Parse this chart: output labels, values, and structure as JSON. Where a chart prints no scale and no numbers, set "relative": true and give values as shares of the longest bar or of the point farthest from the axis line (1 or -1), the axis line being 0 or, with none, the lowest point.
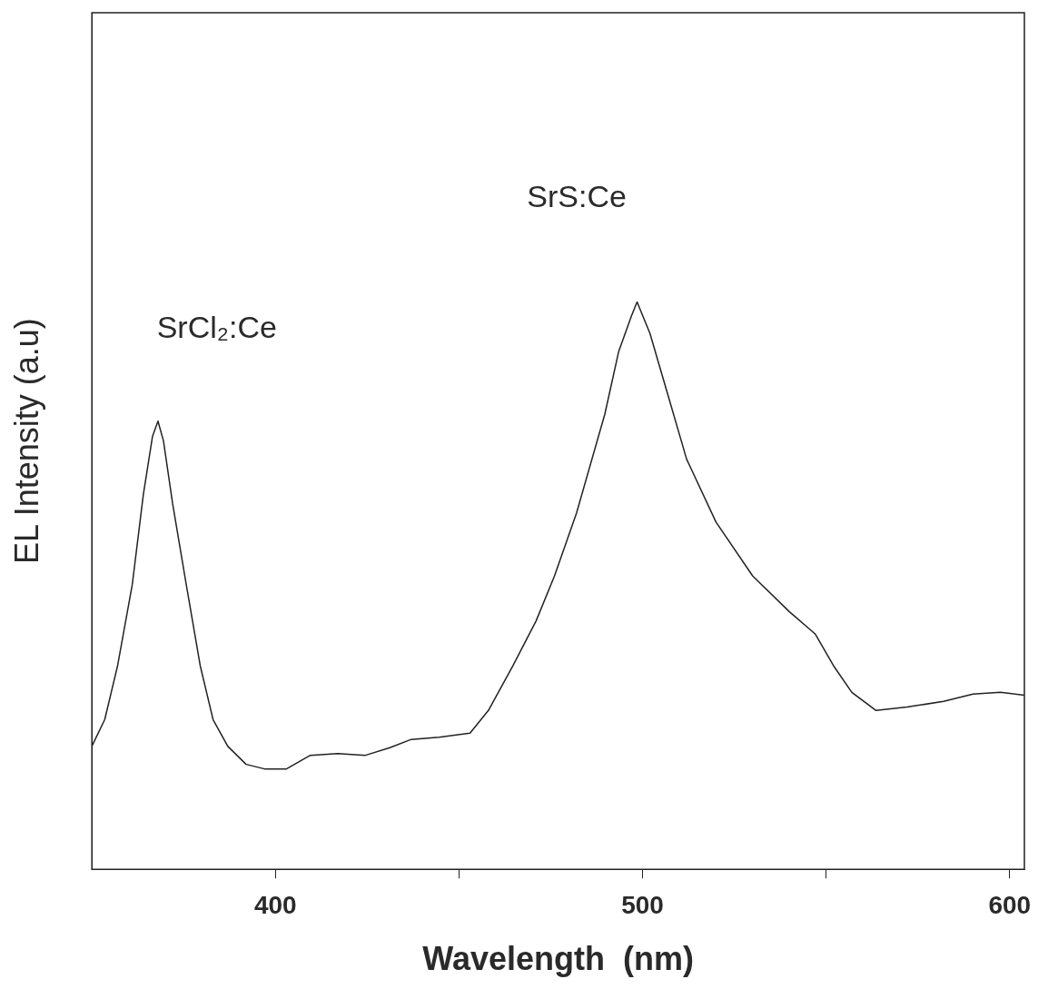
{
  "chart_data": {
    "type": "line",
    "relative": true,
    "xlabel": "Wavelength  (nm)",
    "ylabel": "EL Intensity (a.u)",
    "xlim": [
      350,
      604
    ],
    "xticks": [
      400,
      {
        "value": 450,
        "label": null
      },
      500,
      {
        "value": 550,
        "label": null
      },
      600
    ],
    "marker": "none",
    "line_style": "solid",
    "annotations": [
      "SrCl₂:Ce",
      "SrS:Ce"
    ],
    "series": [
      {
        "color": "#222222",
        "x": [
          350,
          353.5,
          357,
          361,
          364,
          366.5,
          368,
          369.5,
          372,
          375.7,
          379.5,
          383,
          387,
          392,
          397,
          403,
          409.5,
          417,
          424.5,
          431,
          437,
          444.6,
          453,
          458,
          464.7,
          471,
          476,
          482,
          489.7,
          493.5,
          497,
          498.5,
          502,
          507,
          512,
          520,
          530,
          540,
          547,
          552,
          557,
          563.6,
          572,
          582,
          590,
          597.5,
          604
        ],
        "values": [
          0.217,
          0.264,
          0.359,
          0.502,
          0.66,
          0.763,
          0.79,
          0.755,
          0.644,
          0.502,
          0.359,
          0.264,
          0.217,
          0.185,
          0.177,
          0.177,
          0.201,
          0.204,
          0.201,
          0.214,
          0.229,
          0.233,
          0.24,
          0.28,
          0.359,
          0.438,
          0.517,
          0.628,
          0.802,
          0.913,
          0.976,
          1,
          0.945,
          0.834,
          0.723,
          0.612,
          0.517,
          0.454,
          0.415,
          0.359,
          0.312,
          0.28,
          0.286,
          0.296,
          0.309,
          0.312,
          0.307
        ]
      }
    ]
  }
}
